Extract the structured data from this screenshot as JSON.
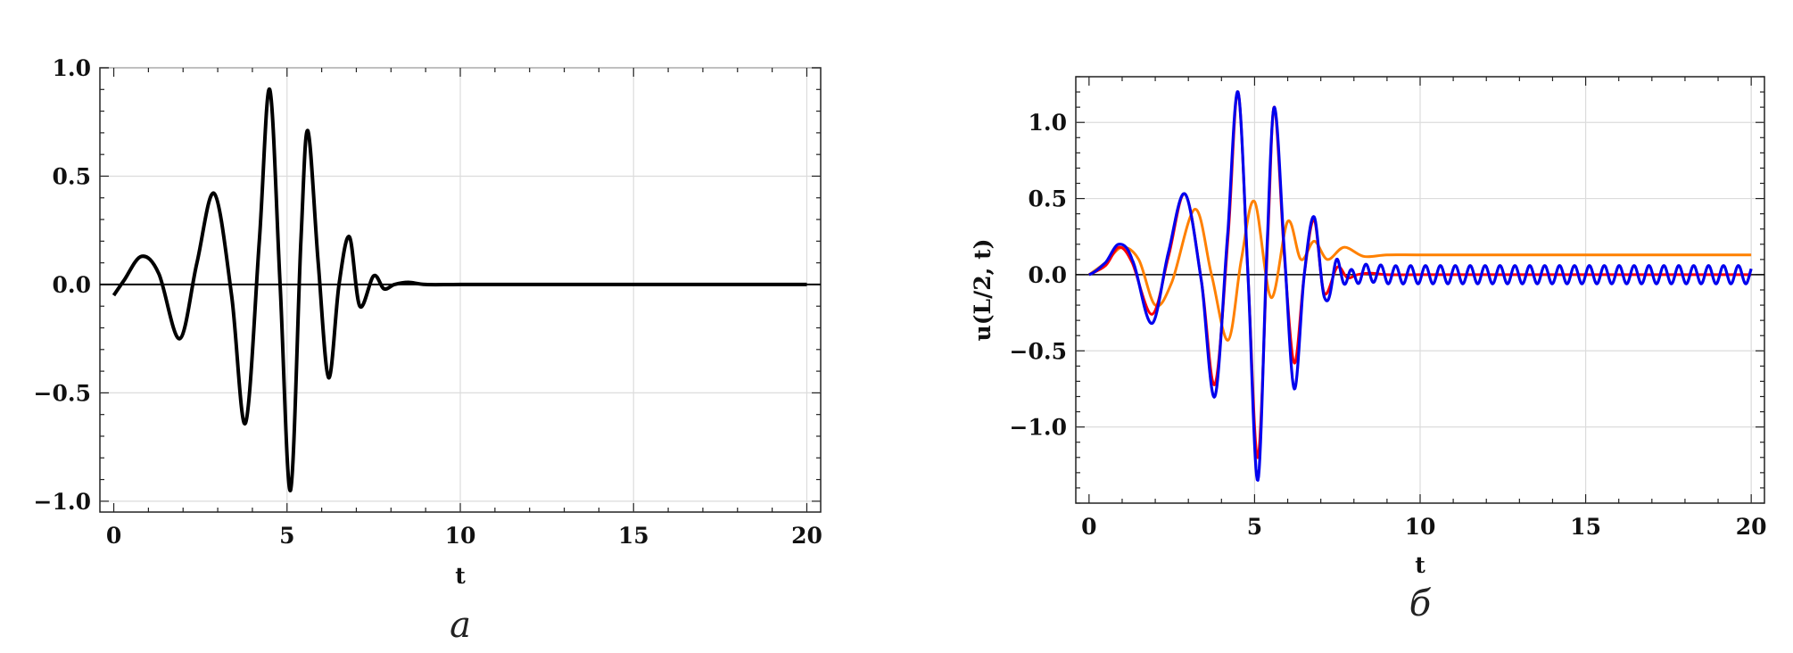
{
  "chart_data": [
    {
      "type": "line",
      "caption": "a",
      "xlabel": "t",
      "ylabel": "",
      "xlim": [
        -0.4,
        20.4
      ],
      "ylim": [
        -1.05,
        1.0
      ],
      "x_ticks": [
        "0",
        "5",
        "10",
        "15",
        "20"
      ],
      "y_ticks": [
        "−1.0",
        "−0.5",
        "0.0",
        "0.5",
        "1.0"
      ],
      "grid": true,
      "series": [
        {
          "color": "#000000",
          "x": [
            0,
            0.3,
            0.8,
            1.3,
            1.9,
            2.4,
            2.9,
            3.4,
            3.8,
            4.2,
            4.5,
            4.8,
            5.1,
            5.4,
            5.6,
            5.9,
            6.2,
            6.5,
            6.8,
            7.1,
            7.5,
            7.8,
            8.1,
            8.5,
            9.0,
            10,
            12,
            15,
            20
          ],
          "y": [
            -0.05,
            0.02,
            0.13,
            0.05,
            -0.25,
            0.1,
            0.42,
            -0.05,
            -0.64,
            0.2,
            0.9,
            0.0,
            -0.95,
            0.2,
            0.71,
            0.1,
            -0.43,
            0.0,
            0.22,
            -0.1,
            0.04,
            -0.02,
            0.0,
            0.01,
            0,
            0,
            0,
            0,
            0
          ]
        }
      ]
    },
    {
      "type": "line",
      "caption": "б",
      "xlabel": "t",
      "ylabel": "u(L/2, t)",
      "xlim": [
        -0.4,
        20.4
      ],
      "ylim": [
        -1.5,
        1.3
      ],
      "x_ticks": [
        "0",
        "5",
        "10",
        "15",
        "20"
      ],
      "y_ticks": [
        "−1.0",
        "−0.5",
        "0.0",
        "0.5",
        "1.0"
      ],
      "grid": true,
      "series": [
        {
          "color": "#ff8000",
          "x": [
            0,
            0.5,
            1.0,
            1.5,
            2.0,
            2.5,
            3.2,
            3.7,
            4.2,
            4.6,
            5.0,
            5.5,
            6.0,
            6.4,
            6.8,
            7.2,
            7.7,
            8.3,
            9.0,
            10,
            12,
            15,
            20
          ],
          "y": [
            0,
            0.08,
            0.18,
            0.1,
            -0.2,
            -0.05,
            0.43,
            0.0,
            -0.43,
            0.1,
            0.48,
            -0.15,
            0.35,
            0.1,
            0.22,
            0.1,
            0.18,
            0.12,
            0.13,
            0.13,
            0.13,
            0.13,
            0.13
          ]
        },
        {
          "color": "#ff0000",
          "x": [
            0,
            0.5,
            0.9,
            1.3,
            1.9,
            2.4,
            2.9,
            3.4,
            3.8,
            4.2,
            4.5,
            4.8,
            5.1,
            5.4,
            5.6,
            5.9,
            6.2,
            6.5,
            6.8,
            7.1,
            7.5,
            7.8,
            8.1,
            8.5,
            9.0,
            10,
            12,
            15,
            20
          ],
          "y": [
            0,
            0.06,
            0.18,
            0.08,
            -0.26,
            0.12,
            0.53,
            -0.05,
            -0.72,
            0.25,
            1.2,
            0.0,
            -1.2,
            0.25,
            1.1,
            0.12,
            -0.58,
            0.0,
            0.36,
            -0.12,
            0.05,
            -0.02,
            0.0,
            0.01,
            0,
            0,
            0,
            0,
            0
          ]
        },
        {
          "color": "#0000ee",
          "x": [
            0,
            0.5,
            0.9,
            1.3,
            1.9,
            2.4,
            2.9,
            3.4,
            3.8,
            4.2,
            4.5,
            4.8,
            5.1,
            5.4,
            5.6,
            5.9,
            6.2,
            6.5,
            6.8,
            7.1,
            7.5,
            7.8,
            8.1,
            8.5,
            9.0,
            10,
            12,
            15,
            20
          ],
          "y": [
            0,
            0.08,
            0.2,
            0.1,
            -0.32,
            0.15,
            0.53,
            -0.05,
            -0.8,
            0.3,
            1.2,
            0.0,
            -1.35,
            0.3,
            1.1,
            0.15,
            -0.75,
            0.0,
            0.38,
            -0.15,
            0.05,
            -0.03,
            0.0,
            0.01,
            0,
            0,
            0,
            0,
            0
          ],
          "ripple": {
            "start": 6.9,
            "end": 20,
            "period": 0.45,
            "amplitude": 0.06
          }
        }
      ]
    }
  ]
}
